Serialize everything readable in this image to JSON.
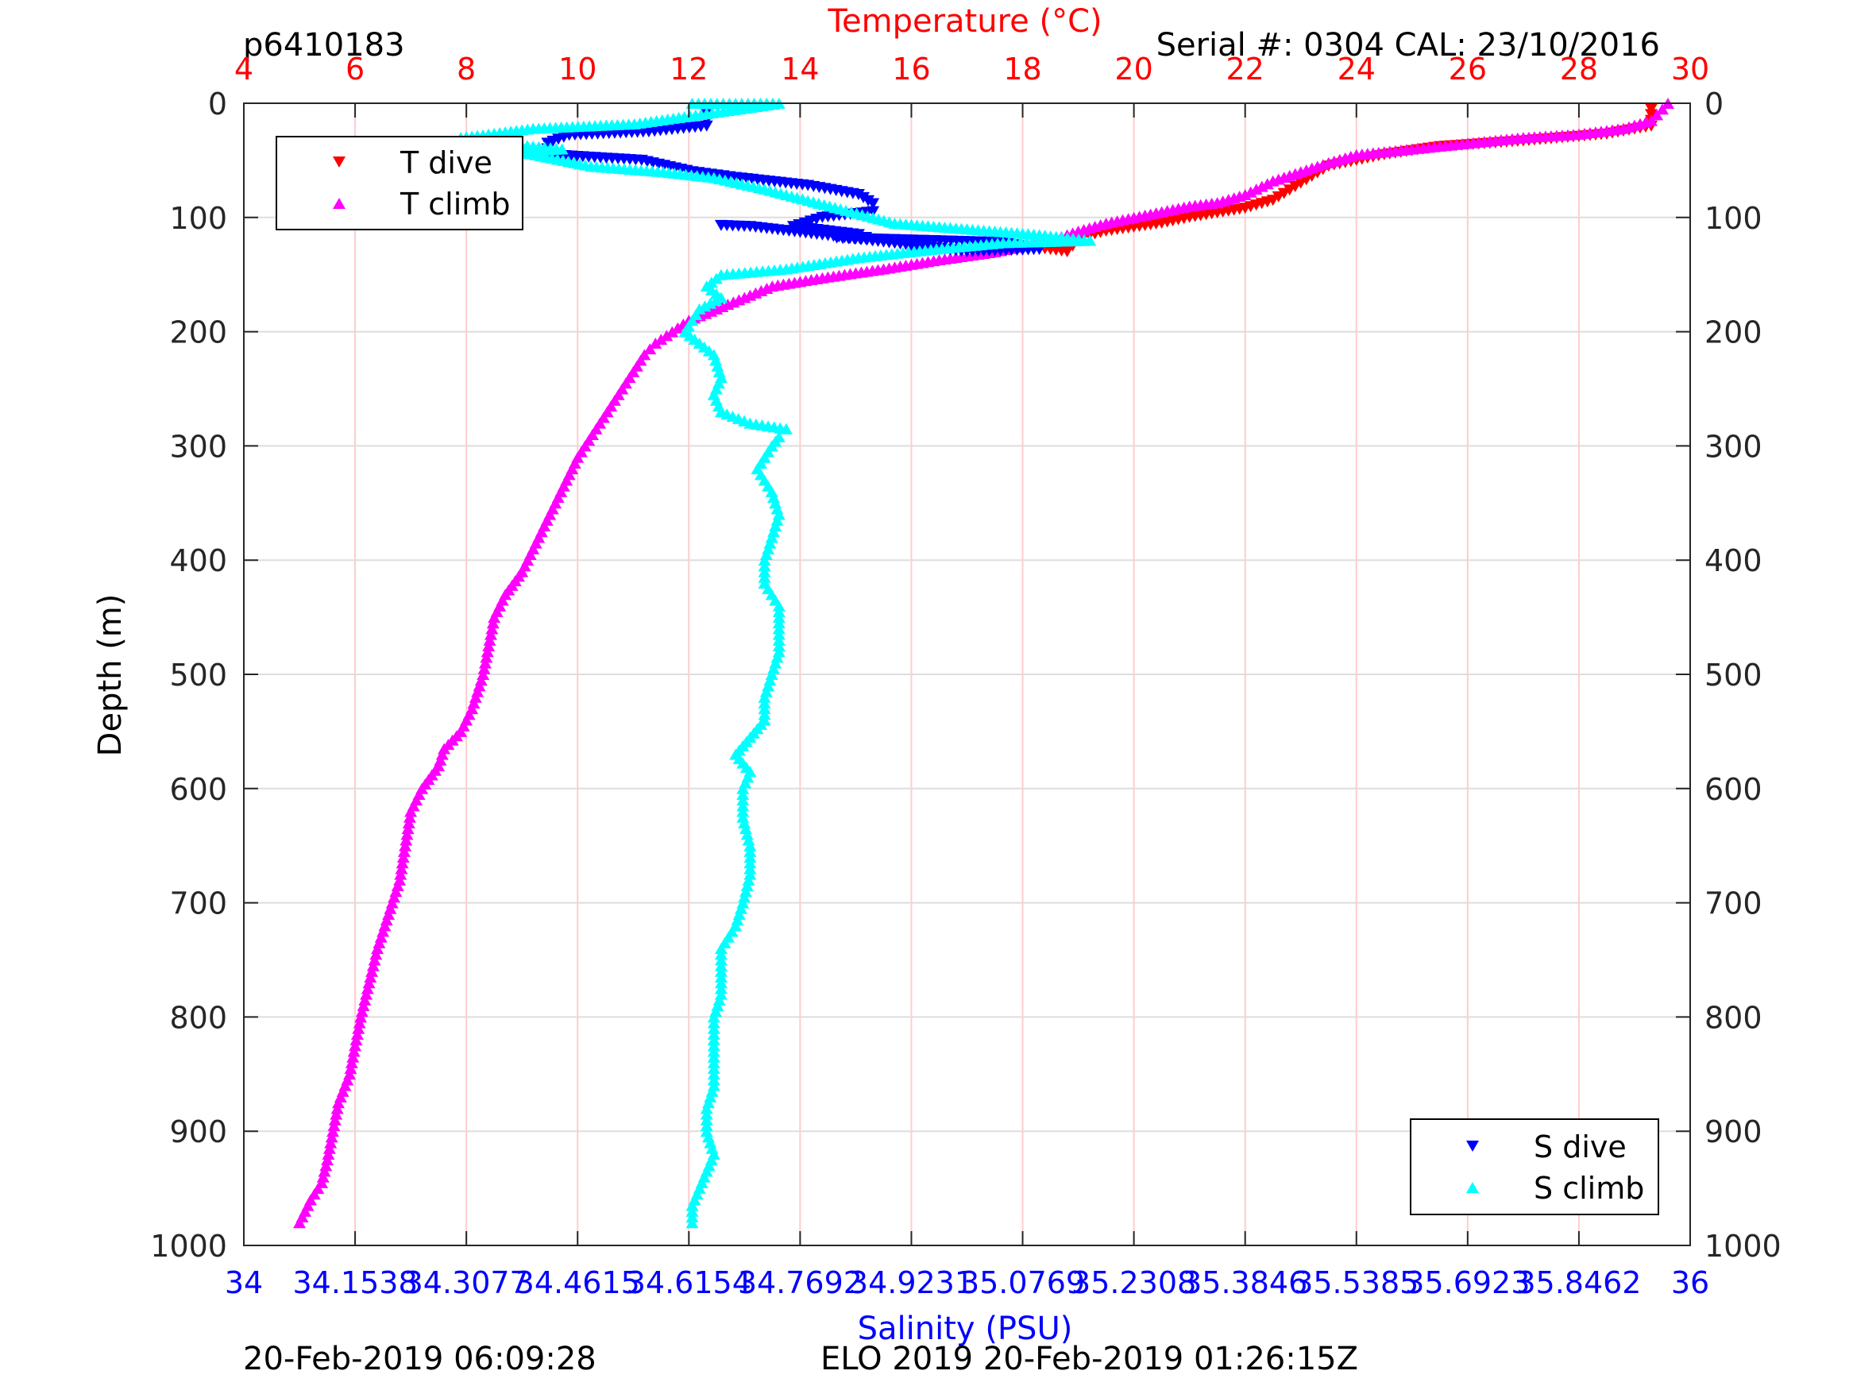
{
  "header": {
    "id_label": "p6410183",
    "serial_label": "Serial #: 0304  CAL: 23/10/2016"
  },
  "footer": {
    "left_timestamp": "20-Feb-2019 06:09:28",
    "right_label": "ELO 2019 20-Feb-2019 01:26:15Z"
  },
  "colors": {
    "t_dive": "#ff0000",
    "t_climb": "#ff00ff",
    "s_dive": "#0000ff",
    "s_climb": "#00ffff",
    "temperature_axis": "#ff0000",
    "salinity_axis": "#0000ff",
    "grid_vertical": "#ffcccc",
    "grid_horizontal": "#dddddd"
  },
  "chart_data": {
    "type": "scatter",
    "top_xlabel": "Temperature (°C)",
    "bottom_xlabel": "Salinity (PSU)",
    "ylabel": "Depth (m)",
    "temperature_range": [
      4,
      30
    ],
    "salinity_range": [
      34,
      36
    ],
    "depth_range": [
      0,
      1000
    ],
    "y_reversed": true,
    "grid": true,
    "temperature_ticks": [
      "4",
      "6",
      "8",
      "10",
      "12",
      "14",
      "16",
      "18",
      "20",
      "22",
      "24",
      "26",
      "28",
      "30"
    ],
    "salinity_ticks": [
      "34",
      "34.1538",
      "34.3077",
      "34.4615",
      "34.6154",
      "34.7692",
      "34.9231",
      "35.0769",
      "35.2308",
      "35.3846",
      "35.5385",
      "35.6923",
      "35.8462",
      "36"
    ],
    "depth_ticks": [
      "0",
      "100",
      "200",
      "300",
      "400",
      "500",
      "600",
      "700",
      "800",
      "900",
      "1000"
    ],
    "legends": [
      {
        "placement": "top-left",
        "entries": [
          "T dive",
          "T climb"
        ]
      },
      {
        "placement": "bottom-right",
        "entries": [
          "S dive",
          "S climb"
        ]
      }
    ],
    "series": [
      {
        "name": "T dive",
        "axis": "temperature",
        "marker": "triangle-down",
        "points": [
          [
            29.3,
            5
          ],
          [
            29.3,
            20
          ],
          [
            28.5,
            27
          ],
          [
            27.0,
            33
          ],
          [
            25.5,
            38
          ],
          [
            24.5,
            45
          ],
          [
            23.5,
            55
          ],
          [
            23.0,
            70
          ],
          [
            22.5,
            85
          ],
          [
            22.0,
            92
          ],
          [
            21.0,
            100
          ],
          [
            20.5,
            105
          ],
          [
            19.5,
            112
          ],
          [
            19.0,
            118
          ],
          [
            18.9,
            125
          ],
          [
            18.8,
            130
          ],
          [
            18.5,
            128
          ],
          [
            18.0,
            125
          ]
        ]
      },
      {
        "name": "T climb",
        "axis": "temperature",
        "marker": "triangle-up",
        "points": [
          [
            29.6,
            0
          ],
          [
            29.5,
            5
          ],
          [
            29.3,
            15
          ],
          [
            28.8,
            22
          ],
          [
            28.0,
            27
          ],
          [
            27.0,
            30
          ],
          [
            26.0,
            35
          ],
          [
            25.0,
            40
          ],
          [
            24.0,
            45
          ],
          [
            23.5,
            52
          ],
          [
            23.0,
            60
          ],
          [
            22.5,
            68
          ],
          [
            22.0,
            80
          ],
          [
            21.5,
            87
          ],
          [
            21.0,
            90
          ],
          [
            20.5,
            95
          ],
          [
            20.0,
            100
          ],
          [
            19.5,
            105
          ],
          [
            19.0,
            112
          ],
          [
            18.5,
            120
          ],
          [
            17.5,
            130
          ],
          [
            16.5,
            137
          ],
          [
            15.5,
            145
          ],
          [
            14.5,
            152
          ],
          [
            13.5,
            160
          ],
          [
            13.0,
            170
          ],
          [
            12.5,
            180
          ],
          [
            12.0,
            190
          ],
          [
            11.7,
            200
          ],
          [
            11.4,
            210
          ],
          [
            11.2,
            220
          ],
          [
            11.0,
            235
          ],
          [
            10.8,
            250
          ],
          [
            10.6,
            265
          ],
          [
            10.4,
            280
          ],
          [
            10.2,
            295
          ],
          [
            10.0,
            310
          ],
          [
            9.8,
            330
          ],
          [
            9.6,
            350
          ],
          [
            9.4,
            370
          ],
          [
            9.2,
            390
          ],
          [
            9.0,
            410
          ],
          [
            8.7,
            430
          ],
          [
            8.5,
            450
          ],
          [
            8.4,
            475
          ],
          [
            8.3,
            500
          ],
          [
            8.1,
            530
          ],
          [
            7.9,
            550
          ],
          [
            7.6,
            565
          ],
          [
            7.5,
            580
          ],
          [
            7.2,
            600
          ],
          [
            7.0,
            620
          ],
          [
            6.9,
            650
          ],
          [
            6.8,
            680
          ],
          [
            6.6,
            710
          ],
          [
            6.4,
            740
          ],
          [
            6.3,
            760
          ],
          [
            6.2,
            780
          ],
          [
            6.1,
            800
          ],
          [
            6.0,
            825
          ],
          [
            5.9,
            850
          ],
          [
            5.7,
            875
          ],
          [
            5.6,
            900
          ],
          [
            5.5,
            925
          ],
          [
            5.4,
            945
          ],
          [
            5.2,
            960
          ],
          [
            5.0,
            980
          ]
        ]
      },
      {
        "name": "S dive",
        "axis": "salinity",
        "marker": "triangle-down",
        "points": [
          [
            34.64,
            10
          ],
          [
            34.64,
            20
          ],
          [
            34.56,
            25
          ],
          [
            34.45,
            28
          ],
          [
            34.42,
            35
          ],
          [
            34.42,
            45
          ],
          [
            34.55,
            50
          ],
          [
            34.62,
            60
          ],
          [
            34.68,
            65
          ],
          [
            34.78,
            72
          ],
          [
            34.85,
            80
          ],
          [
            34.87,
            88
          ],
          [
            34.87,
            95
          ],
          [
            34.8,
            100
          ],
          [
            34.76,
            108
          ],
          [
            34.85,
            115
          ],
          [
            34.87,
            120
          ],
          [
            34.82,
            118
          ],
          [
            35.05,
            122
          ],
          [
            35.1,
            128
          ],
          [
            35.0,
            130
          ],
          [
            34.7,
            108
          ],
          [
            34.66,
            107
          ]
        ]
      },
      {
        "name": "S climb",
        "axis": "salinity",
        "marker": "triangle-up",
        "points": [
          [
            34.62,
            0
          ],
          [
            34.68,
            0
          ],
          [
            34.74,
            0
          ],
          [
            34.54,
            18
          ],
          [
            34.4,
            22
          ],
          [
            34.3,
            30
          ],
          [
            34.36,
            35
          ],
          [
            34.44,
            40
          ],
          [
            34.38,
            42
          ],
          [
            34.48,
            55
          ],
          [
            34.58,
            60
          ],
          [
            34.65,
            65
          ],
          [
            34.72,
            75
          ],
          [
            34.78,
            85
          ],
          [
            34.84,
            95
          ],
          [
            34.9,
            105
          ],
          [
            35.0,
            110
          ],
          [
            35.1,
            115
          ],
          [
            35.17,
            120
          ],
          [
            35.05,
            122
          ],
          [
            34.95,
            128
          ],
          [
            34.85,
            135
          ],
          [
            34.75,
            145
          ],
          [
            34.66,
            150
          ],
          [
            34.64,
            160
          ],
          [
            34.66,
            170
          ],
          [
            34.63,
            180
          ],
          [
            34.62,
            190
          ],
          [
            34.61,
            200
          ],
          [
            34.63,
            210
          ],
          [
            34.65,
            220
          ],
          [
            34.66,
            240
          ],
          [
            34.65,
            255
          ],
          [
            34.66,
            270
          ],
          [
            34.7,
            280
          ],
          [
            34.75,
            285
          ],
          [
            34.74,
            292
          ],
          [
            34.73,
            300
          ],
          [
            34.71,
            320
          ],
          [
            34.73,
            340
          ],
          [
            34.74,
            360
          ],
          [
            34.73,
            380
          ],
          [
            34.72,
            400
          ],
          [
            34.72,
            420
          ],
          [
            34.74,
            440
          ],
          [
            34.74,
            460
          ],
          [
            34.74,
            480
          ],
          [
            34.73,
            500
          ],
          [
            34.72,
            520
          ],
          [
            34.72,
            540
          ],
          [
            34.7,
            555
          ],
          [
            34.68,
            570
          ],
          [
            34.7,
            585
          ],
          [
            34.69,
            600
          ],
          [
            34.69,
            625
          ],
          [
            34.7,
            650
          ],
          [
            34.7,
            675
          ],
          [
            34.69,
            700
          ],
          [
            34.68,
            720
          ],
          [
            34.66,
            740
          ],
          [
            34.66,
            760
          ],
          [
            34.66,
            780
          ],
          [
            34.65,
            800
          ],
          [
            34.65,
            820
          ],
          [
            34.65,
            840
          ],
          [
            34.65,
            860
          ],
          [
            34.64,
            880
          ],
          [
            34.64,
            900
          ],
          [
            34.65,
            920
          ],
          [
            34.64,
            935
          ],
          [
            34.63,
            950
          ],
          [
            34.62,
            965
          ],
          [
            34.62,
            980
          ]
        ]
      }
    ]
  }
}
